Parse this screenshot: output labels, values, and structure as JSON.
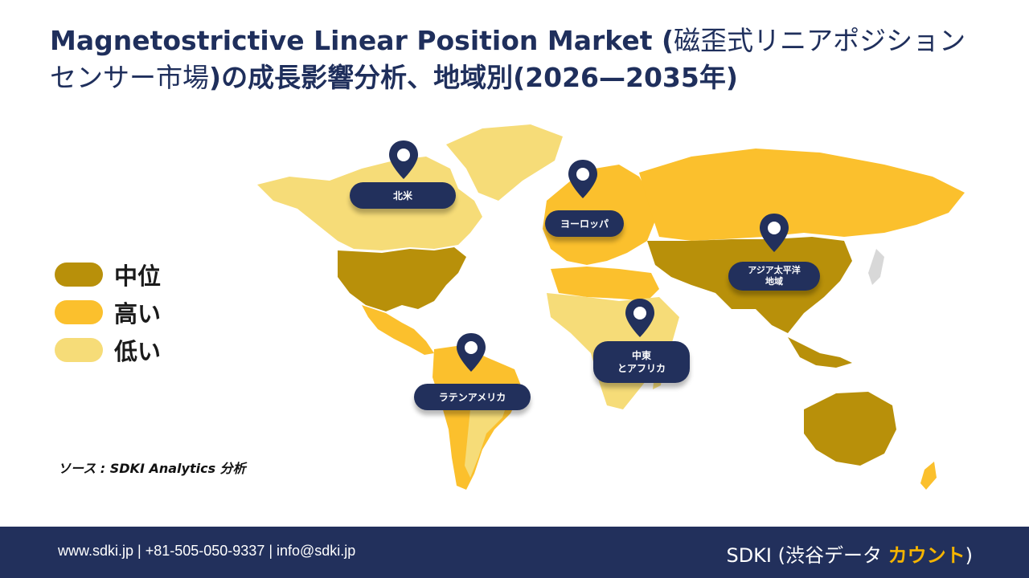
{
  "title": {
    "line1_en": "Magnetostrictive Linear Position Market (",
    "line1_jp": "磁歪式リニアポジション",
    "line2_jp": "センサー市場",
    "line2_rest": ")の成長影響分析、地域別(2026—2035年)"
  },
  "legend": [
    {
      "label": "中位",
      "color": "#b8900a"
    },
    {
      "label": "高い",
      "color": "#fbc02d"
    },
    {
      "label": "低い",
      "color": "#f6dc78"
    }
  ],
  "regions": {
    "north_america": "北米",
    "europe": "ヨーロッパ",
    "asia_pacific": "アジア太平洋\n地域",
    "middle_east_africa": "中東\nとアフリカ",
    "latin_america": "ラテンアメリカ"
  },
  "source": "ソース : SDKI Analytics 分析",
  "footer": {
    "contact": "www.sdki.jp | +81-505-050-9337 | info@sdki.jp",
    "brand_prefix": "SDKI (渋谷データ ",
    "brand_accent": "カウント",
    "brand_suffix": ")"
  },
  "colors": {
    "navy": "#22305c",
    "medium": "#b8900a",
    "high": "#fbc02d",
    "low": "#f6dc78"
  }
}
